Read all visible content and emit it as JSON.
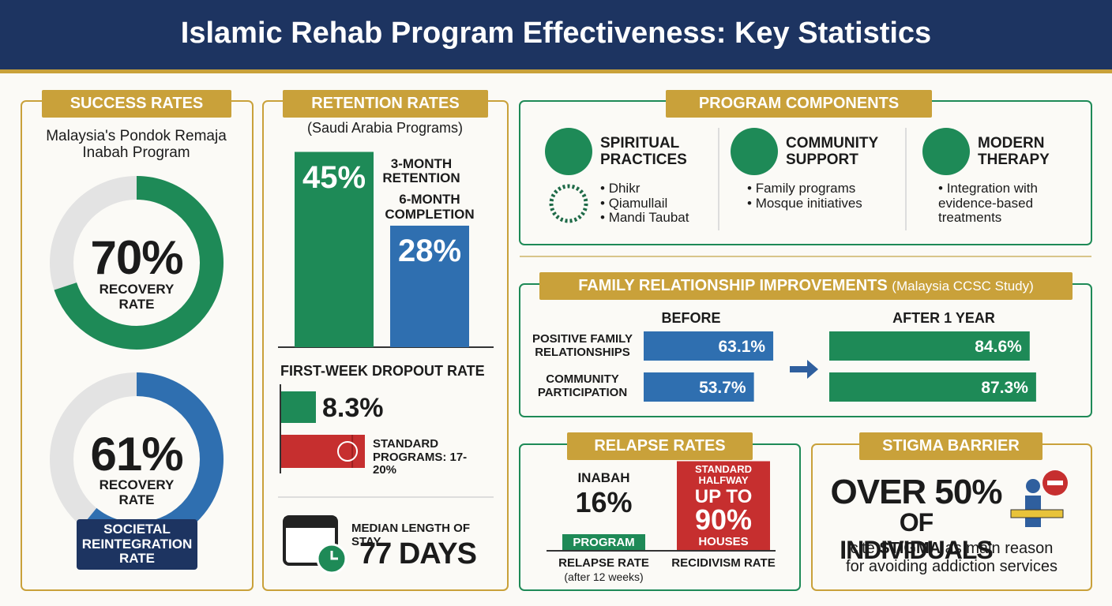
{
  "header": {
    "title": "Islamic Rehab Program Effectiveness: Key Statistics"
  },
  "success": {
    "heading": "SUCCESS RATES",
    "subtitle": "Malaysia's Pondok Remaja Inabah Program",
    "donuts": [
      {
        "value": 70,
        "label": "70%",
        "caption": "RECOVERY RATE",
        "color": "#1e8a57"
      },
      {
        "value": 61,
        "label": "61%",
        "caption": "RECOVERY RATE",
        "color": "#2f6fb0",
        "badge": "SOCIETAL REINTEGRATION RATE"
      }
    ]
  },
  "retention": {
    "heading": "RETENTION RATES",
    "subtitle": "(Saudi Arabia Programs)",
    "bars": [
      {
        "value": 45,
        "label": "45%",
        "caption": "3-MONTH RETENTION",
        "color": "#1e8a57"
      },
      {
        "value": 28,
        "label": "28%",
        "caption": "6-MONTH COMPLETION",
        "color": "#2f6fb0"
      }
    ],
    "dropout": {
      "title": "FIRST-WEEK DROPOUT RATE",
      "inabah": {
        "value": 8.3,
        "label": "8.3%",
        "color": "#1e8a57"
      },
      "standard": {
        "range": [
          17,
          20
        ],
        "label": "STANDARD PROGRAMS: 17-20%",
        "color": "#c62f2f"
      }
    },
    "stay": {
      "caption": "MEDIAN LENGTH OF STAY",
      "value": "77 DAYS"
    }
  },
  "components": {
    "heading": "PROGRAM COMPONENTS",
    "items": [
      {
        "title": "SPIRITUAL PRACTICES",
        "bullets": [
          "Dhikr",
          "Qiamullail",
          "Mandi Taubat"
        ]
      },
      {
        "title": "COMMUNITY SUPPORT",
        "bullets": [
          "Family programs",
          "Mosque initiatives"
        ]
      },
      {
        "title": "MODERN THERAPY",
        "bullets": [
          "Integration with evidence-based treatments"
        ]
      }
    ]
  },
  "family": {
    "heading": "FAMILY RELATIONSHIP IMPROVEMENTS",
    "note": "(Malaysia CCSC Study)",
    "before_label": "BEFORE",
    "after_label": "AFTER 1 YEAR",
    "before_color": "#2f6fb0",
    "after_color": "#1e8a57",
    "rows": [
      {
        "label": "POSITIVE FAMILY RELATIONSHIPS",
        "before": 63.1,
        "before_label": "63.1%",
        "after": 84.6,
        "after_label": "84.6%"
      },
      {
        "label": "COMMUNITY PARTICIPATION",
        "before": 53.7,
        "before_label": "53.7%",
        "after": 87.3,
        "after_label": "87.3%"
      }
    ]
  },
  "relapse": {
    "heading": "RELAPSE RATES",
    "inabah": {
      "value": 16,
      "top": "INABAH",
      "label": "16%",
      "bottom": "PROGRAM",
      "caption": "RELAPSE RATE",
      "note": "(after 12 weeks)",
      "color": "#1e8a57"
    },
    "standard": {
      "value": 90,
      "top": "STANDARD HALFWAY",
      "prefix": "UP TO",
      "label": "90%",
      "bottom": "HOUSES",
      "caption": "RECIDIVISM RATE",
      "color": "#c62f2f"
    }
  },
  "stigma": {
    "heading": "STIGMA BARRIER",
    "big": "OVER 50%",
    "sub": "OF INDIVIDUALS",
    "line1_a": "cite",
    "line1_b": "STIGMA",
    "line1_c": "as main reason",
    "line2": "for avoiding addiction services"
  }
}
